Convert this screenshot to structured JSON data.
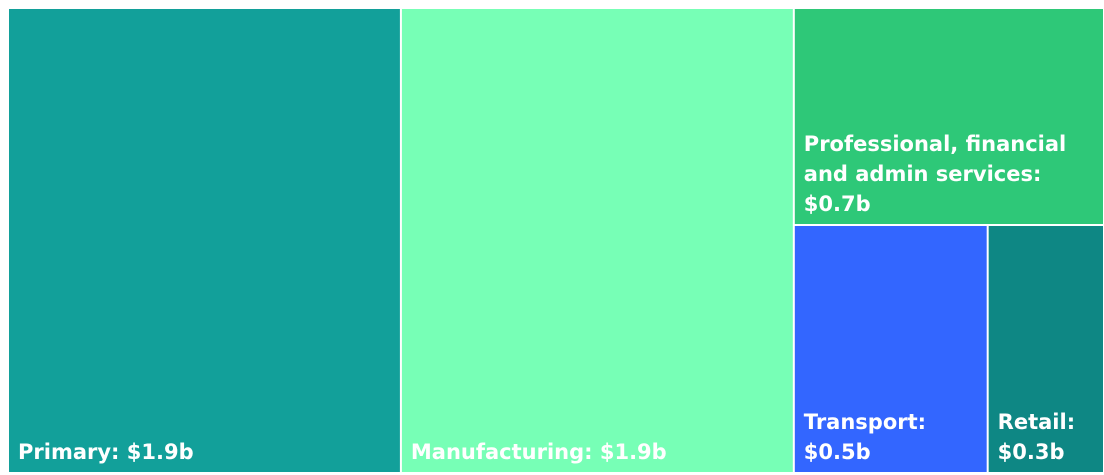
{
  "chart_data": {
    "type": "treemap",
    "value_labels": [
      "Primary: $1.9b",
      "Manufacturing: $1.9b",
      "Professional, financial and admin services: $0.7b",
      "Transport: $0.5b",
      "Retail: $0.3b"
    ],
    "values": [
      1.9,
      1.9,
      0.7,
      0.5,
      0.3
    ],
    "colors": [
      "#12a09a",
      "#77ffb6",
      "#2ec878",
      "#3366ff",
      "#0e8784"
    ]
  }
}
